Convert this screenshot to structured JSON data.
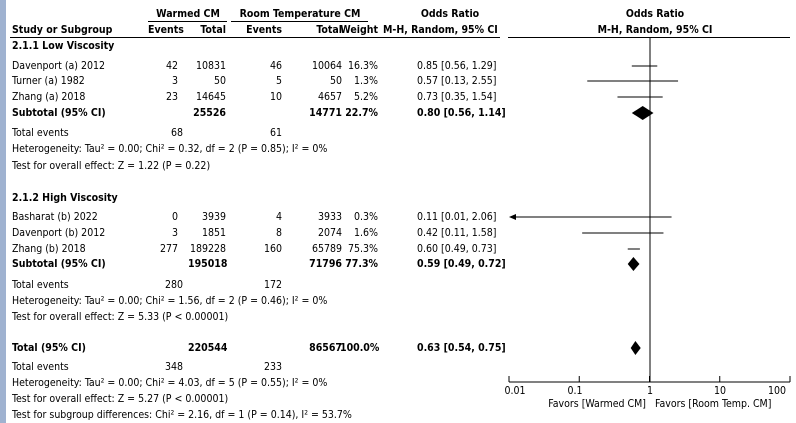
{
  "headers": {
    "group1": "Warmed CM",
    "group2": "Room Temperature CM",
    "or_left": "Odds Ratio",
    "or_right": "Odds Ratio",
    "study": "Study or Subgroup",
    "events1": "Events",
    "total1": "Total",
    "events2": "Events",
    "total2": "Total",
    "weight": "Weight",
    "method_left": "M-H, Random, 95% CI",
    "method_right": "M-H, Random, 95% CI"
  },
  "subgroups": [
    {
      "title": "2.1.1 Low Viscosity",
      "studies": [
        {
          "name": "Davenport (a) 2012",
          "e1": "42",
          "t1": "10831",
          "e2": "46",
          "t2": "10064",
          "weight": "16.3%",
          "ci": "0.85 [0.56, 1.29]",
          "or": 0.85,
          "lo": 0.56,
          "hi": 1.29,
          "w": 16.3
        },
        {
          "name": "Turner (a) 1982",
          "e1": "3",
          "t1": "50",
          "e2": "5",
          "t2": "50",
          "weight": "1.3%",
          "ci": "0.57 [0.13, 2.55]",
          "or": 0.57,
          "lo": 0.13,
          "hi": 2.55,
          "w": 1.3
        },
        {
          "name": "Zhang (a) 2018",
          "e1": "23",
          "t1": "14645",
          "e2": "10",
          "t2": "4657",
          "weight": "5.2%",
          "ci": "0.73 [0.35, 1.54]",
          "or": 0.73,
          "lo": 0.35,
          "hi": 1.54,
          "w": 5.2
        }
      ],
      "subtotal": {
        "label": "Subtotal (95% CI)",
        "t1": "25526",
        "t2": "14771",
        "weight": "22.7%",
        "ci": "0.80 [0.56, 1.14]",
        "or": 0.8,
        "lo": 0.56,
        "hi": 1.14
      },
      "total_events": {
        "label": "Total events",
        "e1": "68",
        "e2": "61"
      },
      "heterogeneity": "Heterogeneity: Tau² = 0.00; Chi² = 0.32, df = 2 (P = 0.85); I² = 0%",
      "overall": "Test for overall effect: Z = 1.22 (P = 0.22)"
    },
    {
      "title": "2.1.2 High Viscosity",
      "studies": [
        {
          "name": "Basharat (b) 2022",
          "e1": "0",
          "t1": "3939",
          "e2": "4",
          "t2": "3933",
          "weight": "0.3%",
          "ci": "0.11 [0.01, 2.06]",
          "or": 0.11,
          "lo": 0.01,
          "hi": 2.06,
          "w": 0.3
        },
        {
          "name": "Davenport (b) 2012",
          "e1": "3",
          "t1": "1851",
          "e2": "8",
          "t2": "2074",
          "weight": "1.6%",
          "ci": "0.42 [0.11, 1.58]",
          "or": 0.42,
          "lo": 0.11,
          "hi": 1.58,
          "w": 1.6
        },
        {
          "name": "Zhang (b) 2018",
          "e1": "277",
          "t1": "189228",
          "e2": "160",
          "t2": "65789",
          "weight": "75.3%",
          "ci": "0.60 [0.49, 0.73]",
          "or": 0.6,
          "lo": 0.49,
          "hi": 0.73,
          "w": 75.3
        }
      ],
      "subtotal": {
        "label": "Subtotal (95% CI)",
        "t1": "195018",
        "t2": "71796",
        "weight": "77.3%",
        "ci": "0.59 [0.49, 0.72]",
        "or": 0.59,
        "lo": 0.49,
        "hi": 0.72
      },
      "total_events": {
        "label": "Total events",
        "e1": "280",
        "e2": "172"
      },
      "heterogeneity": "Heterogeneity: Tau² = 0.00; Chi² = 1.56, df = 2 (P = 0.46); I² = 0%",
      "overall": "Test for overall effect: Z = 5.33 (P < 0.00001)"
    }
  ],
  "total": {
    "label": "Total (95% CI)",
    "t1": "220544",
    "t2": "86567",
    "weight": "100.0%",
    "ci": "0.63 [0.54, 0.75]",
    "or": 0.63,
    "lo": 0.54,
    "hi": 0.75
  },
  "total_events": {
    "label": "Total events",
    "e1": "348",
    "e2": "233"
  },
  "total_heterogeneity": "Heterogeneity: Tau² = 0.00; Chi² = 4.03, df = 5 (P = 0.55); I² = 0%",
  "total_overall": "Test for overall effect: Z = 5.27 (P < 0.00001)",
  "subgroup_diff": "Test for subgroup differences: Chi² = 2.16, df = 1 (P = 0.14), I² = 53.7%",
  "axis": {
    "ticks": [
      "0.01",
      "0.1",
      "1",
      "10",
      "100"
    ],
    "favors_left": "Favors [Warmed CM]",
    "favors_right": "Favors [Room Temp. CM]"
  },
  "colors": {
    "square": "#1a1adb",
    "diamond": "#000000",
    "sidebar": "#9fb2d0"
  },
  "chart_data": {
    "type": "forest",
    "scale": "log",
    "xlim": [
      0.01,
      100
    ],
    "x_ticks": [
      0.01,
      0.1,
      1,
      10,
      100
    ],
    "xlabel_left": "Favors [Warmed CM]",
    "xlabel_right": "Favors [Room Temp. CM]",
    "reference_line": 1,
    "rows": [
      {
        "label": "Davenport (a) 2012",
        "or": 0.85,
        "lo": 0.56,
        "hi": 1.29,
        "weight": 16.3
      },
      {
        "label": "Turner (a) 1982",
        "or": 0.57,
        "lo": 0.13,
        "hi": 2.55,
        "weight": 1.3
      },
      {
        "label": "Zhang (a) 2018",
        "or": 0.73,
        "lo": 0.35,
        "hi": 1.54,
        "weight": 5.2
      },
      {
        "label": "Subtotal (95% CI)",
        "or": 0.8,
        "lo": 0.56,
        "hi": 1.14,
        "weight": 22.7,
        "summary": true
      },
      {
        "label": "Basharat (b) 2022",
        "or": 0.11,
        "lo": 0.01,
        "hi": 2.06,
        "weight": 0.3
      },
      {
        "label": "Davenport (b) 2012",
        "or": 0.42,
        "lo": 0.11,
        "hi": 1.58,
        "weight": 1.6
      },
      {
        "label": "Zhang (b) 2018",
        "or": 0.6,
        "lo": 0.49,
        "hi": 0.73,
        "weight": 75.3
      },
      {
        "label": "Subtotal (95% CI)",
        "or": 0.59,
        "lo": 0.49,
        "hi": 0.72,
        "weight": 77.3,
        "summary": true
      },
      {
        "label": "Total (95% CI)",
        "or": 0.63,
        "lo": 0.54,
        "hi": 0.75,
        "weight": 100.0,
        "summary": true
      }
    ]
  }
}
